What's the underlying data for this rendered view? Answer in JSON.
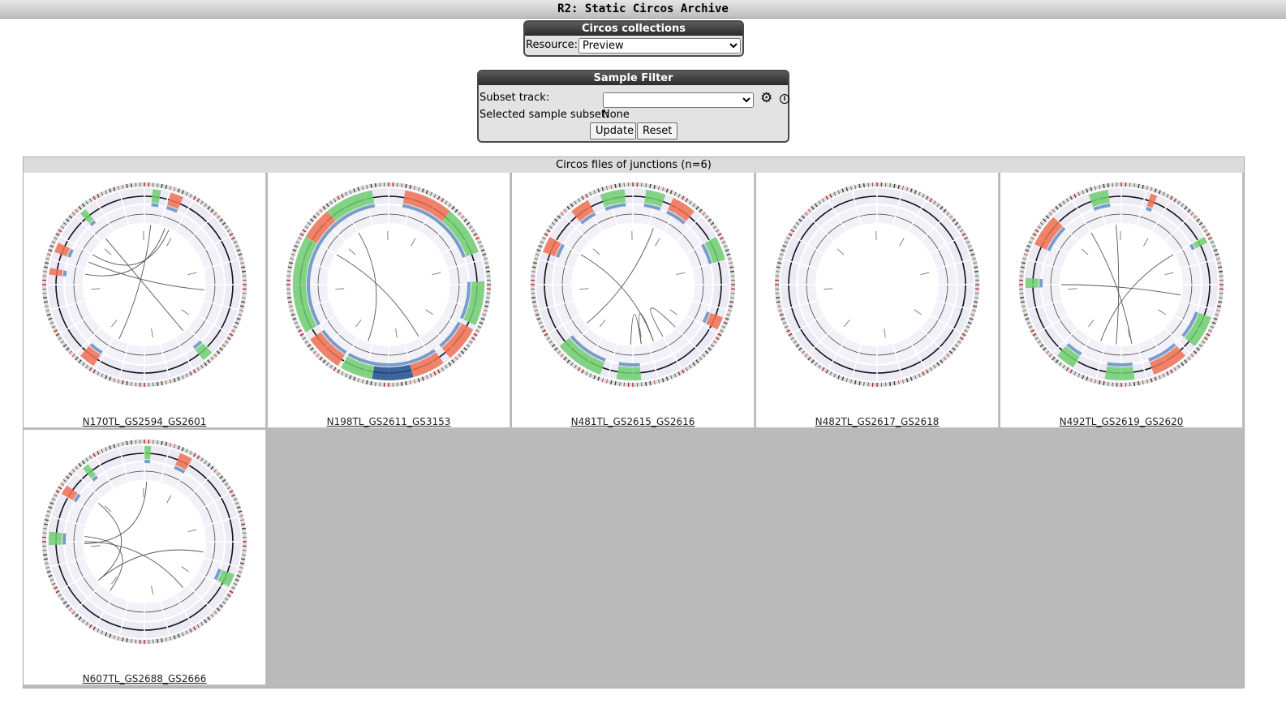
{
  "header": {
    "title": "R2: Static Circos Archive"
  },
  "circos_collections": {
    "title": "Circos collections",
    "resource_label": "Resource:",
    "resource_value": "Preview"
  },
  "sample_filter": {
    "title": "Sample Filter",
    "subset_track_label": "Subset track:",
    "subset_track_value": "",
    "selected_label": "Selected sample subset:",
    "selected_value": "None",
    "update_label": "Update",
    "reset_label": "Reset",
    "gear_icon": "gear-icon",
    "info_icon": "info-icon"
  },
  "results": {
    "title": "Circos files of junctions (n=6)",
    "items": [
      {
        "label": "N170TL_GS2594_GS2601"
      },
      {
        "label": "N198TL_GS2611_GS3153"
      },
      {
        "label": "N481TL_GS2615_GS2616"
      },
      {
        "label": "N482TL_GS2617_GS2618"
      },
      {
        "label": "N492TL_GS2619_GS2620"
      },
      {
        "label": "N607TL_GS2688_GS2666"
      }
    ]
  },
  "colors": {
    "gain": "#f07050",
    "loss": "#6ecf6e",
    "deep_loss": "#1f4e8c",
    "track_bg": "#ecebf5",
    "empty_area": "#bababa"
  }
}
